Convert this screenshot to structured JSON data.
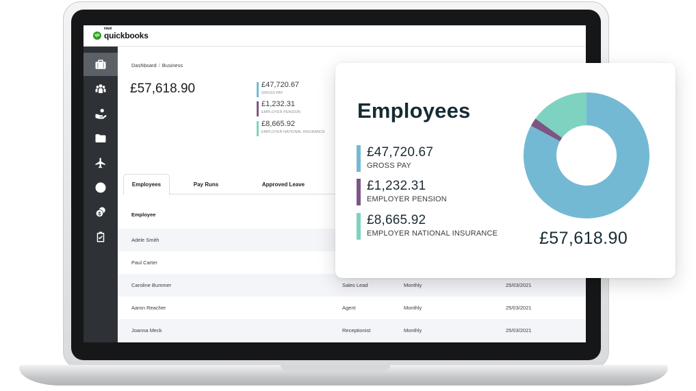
{
  "app": {
    "brand_small": "intuit",
    "brand": "quickbooks",
    "logo_initials": "qb"
  },
  "colors": {
    "gross_pay": "#74b9d4",
    "employer_pension": "#7c5585",
    "employer_ni": "#7dd3c0",
    "sidebar_bg": "#2e3236",
    "brand_green": "#2ca01c"
  },
  "sidebar": {
    "items": [
      {
        "icon": "briefcase-icon",
        "active": true
      },
      {
        "icon": "people-icon",
        "active": false
      },
      {
        "icon": "hand-coin-icon",
        "active": false
      },
      {
        "icon": "folder-icon",
        "active": false
      },
      {
        "icon": "airplane-icon",
        "active": false
      },
      {
        "icon": "clock-icon",
        "active": false
      },
      {
        "icon": "dollar-coins-icon",
        "active": false
      },
      {
        "icon": "clipboard-check-icon",
        "active": false
      }
    ]
  },
  "breadcrumb": {
    "part1": "Dashboard",
    "separator": "/",
    "part2": "Business"
  },
  "summary": {
    "total": "£57,618.90",
    "stats": [
      {
        "value": "£47,720.67",
        "label": "GROSS PAY"
      },
      {
        "value": "£1,232.31",
        "label": "EMPLOYER PENSION"
      },
      {
        "value": "£8,665.92",
        "label": "EMPLOYER NATIONAL INSURANCE"
      }
    ]
  },
  "tabs": [
    {
      "label": "Employees",
      "active": true
    },
    {
      "label": "Pay Runs",
      "active": false
    },
    {
      "label": "Approved Leave",
      "active": false
    }
  ],
  "table": {
    "header": {
      "employee": "Employee"
    },
    "rows": [
      {
        "name": "Adele Smith",
        "role": "",
        "frequency": "",
        "date": ""
      },
      {
        "name": "Paul Carter",
        "role": "",
        "frequency": "",
        "date": ""
      },
      {
        "name": "Caroline Bummer",
        "role": "Sales Lead",
        "frequency": "Monthly",
        "date": "25/03/2021"
      },
      {
        "name": "Aaron Reacher",
        "role": "Agent",
        "frequency": "Monthly",
        "date": "25/03/2021"
      },
      {
        "name": "Joanna Meck",
        "role": "Receptionist",
        "frequency": "Monthly",
        "date": "25/03/2021"
      }
    ]
  },
  "card": {
    "title": "Employees",
    "stats": [
      {
        "value": "£47,720.67",
        "label": "GROSS PAY"
      },
      {
        "value": "£1,232.31",
        "label": "EMPLOYER PENSION"
      },
      {
        "value": "£8,665.92",
        "label": "EMPLOYER NATIONAL INSURANCE"
      }
    ],
    "total": "£57,618.90"
  },
  "chart_data": {
    "type": "pie",
    "donut": true,
    "labels": [
      "GROSS PAY",
      "EMPLOYER PENSION",
      "EMPLOYER NATIONAL INSURANCE"
    ],
    "values": [
      47720.67,
      1232.31,
      8665.92
    ],
    "colors": [
      "#74b9d4",
      "#7c5585",
      "#7dd3c0"
    ],
    "total": 57618.9
  }
}
